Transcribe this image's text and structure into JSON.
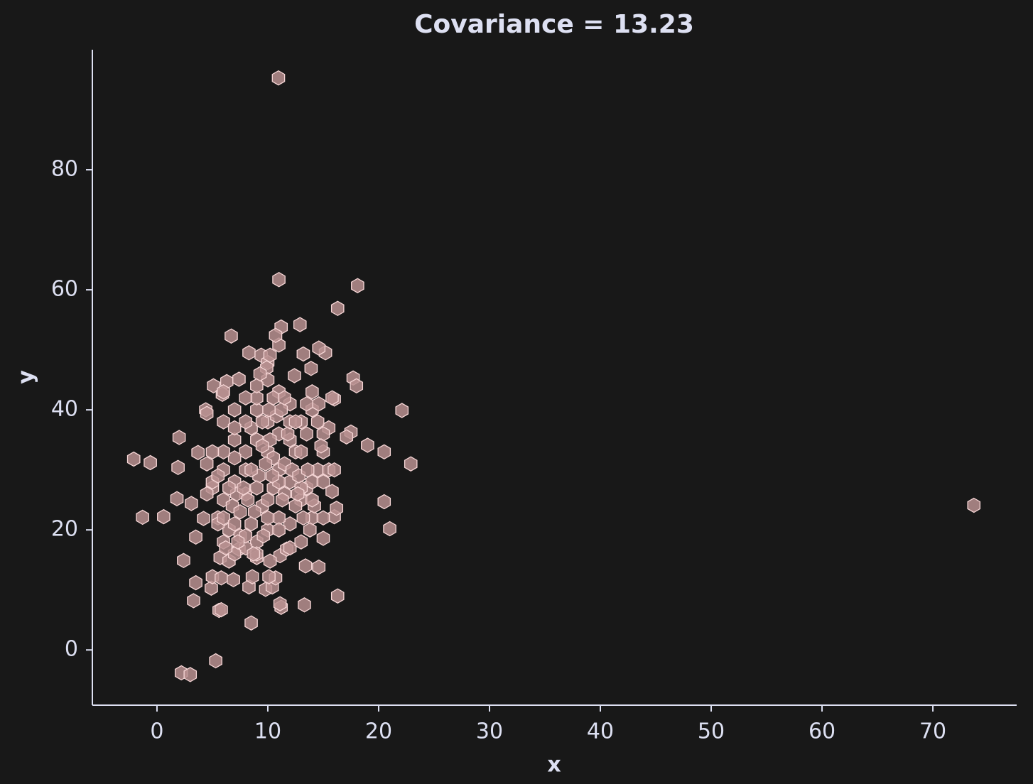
{
  "chart_data": {
    "type": "scatter",
    "title": "Covariance = 13.23",
    "x_label": "x",
    "y_label": "y",
    "x": [
      10.96,
      73.7,
      11.0,
      18.1,
      16.3,
      6.7,
      12.9,
      11.2,
      22.1,
      22.9,
      20.5,
      20.5,
      21.0,
      19.0,
      17.7,
      18.0,
      -2.1,
      -0.6,
      -1.3,
      0.6,
      2.0,
      1.9,
      1.8,
      2.4,
      3.3,
      3.5,
      2.2,
      3.0,
      5.3,
      8.5,
      5.6,
      11.2,
      13.3,
      16.3,
      14.6,
      13.4,
      15.0,
      16.0,
      16.2,
      15.8,
      17.5,
      17.1,
      16.0,
      15.2,
      14.6,
      13.2,
      13.9,
      12.4,
      11.0,
      10.7,
      8.3,
      9.4,
      10.0,
      9.9,
      10.2,
      5.1,
      6.3,
      7.4,
      5.9,
      4.4,
      4.5,
      3.7,
      3.1,
      3.5,
      4.2,
      4.9,
      5.0,
      5.8,
      6.9,
      5.8,
      8.3,
      8.6,
      9.8,
      10.4,
      10.7,
      10.1,
      11.1,
      11.1,
      11.7,
      10.2,
      9.0,
      5.7,
      6.5,
      7.4,
      6,
      7,
      8,
      9,
      10,
      11,
      12,
      13,
      14,
      9,
      10,
      11,
      12,
      8,
      7,
      6,
      5,
      4.5,
      5.5,
      6.5,
      7.5,
      8.5,
      9.5,
      10.5,
      11.5,
      12.5,
      13.5,
      14.5,
      15,
      15.5,
      14,
      13,
      12,
      11,
      10,
      9,
      8,
      7,
      6,
      8.5,
      9.5,
      10.5,
      11.5,
      12.5,
      13.5,
      14.5,
      15.5,
      14,
      13,
      12,
      11,
      10,
      9,
      8,
      7,
      6,
      5.5,
      6.8,
      7.2,
      7.8,
      8.2,
      8.8,
      9.2,
      9.8,
      10.2,
      10.8,
      11.2,
      11.8,
      12.2,
      12.8,
      13.2,
      13.8,
      14.2,
      15,
      16,
      15,
      13,
      12,
      11,
      10,
      9,
      8,
      7,
      6,
      5,
      4.5,
      5,
      6,
      7,
      8,
      9,
      10,
      11,
      12,
      13,
      14,
      15,
      6.5,
      7.5,
      8.5,
      9.5,
      10.5,
      11.5,
      12.5,
      13.5,
      14,
      9,
      8,
      7,
      6,
      5.5,
      6.2,
      7.3,
      8.7,
      9.6,
      10.4,
      11.3,
      12.7,
      13.6,
      14.8,
      15.8,
      14.6,
      9.3,
      10.1
    ],
    "y": [
      95.3,
      24.1,
      61.7,
      60.7,
      56.9,
      52.3,
      54.2,
      53.8,
      39.9,
      31.0,
      33.0,
      24.7,
      20.2,
      34.1,
      45.3,
      44.0,
      31.8,
      31.2,
      22.1,
      22.2,
      35.4,
      30.4,
      25.2,
      14.9,
      8.2,
      11.2,
      -3.8,
      -4.1,
      -1.8,
      4.5,
      6.6,
      7.1,
      7.5,
      9.0,
      13.8,
      14.0,
      18.6,
      22.2,
      23.6,
      26.4,
      36.3,
      35.5,
      41.8,
      49.5,
      50.3,
      49.3,
      46.9,
      45.7,
      50.8,
      52.4,
      49.5,
      49.1,
      47.9,
      47.0,
      49.1,
      44.0,
      44.7,
      45.1,
      42.6,
      40.0,
      39.4,
      32.9,
      24.4,
      18.8,
      21.9,
      10.3,
      12.2,
      12.0,
      11.7,
      6.7,
      10.5,
      12.2,
      10.1,
      10.5,
      12.0,
      12.2,
      7.7,
      15.7,
      16.8,
      14.8,
      15.4,
      15.4,
      14.8,
      16.8,
      30,
      28,
      26,
      35,
      33,
      30,
      28,
      25,
      22,
      40,
      38,
      36,
      35,
      33,
      35,
      25,
      27,
      26,
      22,
      20,
      19,
      21,
      24,
      27,
      26,
      24,
      27,
      30,
      33,
      37,
      40,
      38,
      41,
      43,
      45,
      42,
      42,
      40,
      38,
      37,
      38,
      32,
      31,
      33,
      36,
      38,
      30,
      28,
      27,
      21,
      22,
      20,
      18,
      17,
      16,
      18,
      21,
      24,
      26,
      27,
      25,
      23,
      29,
      31,
      35,
      39,
      40,
      36,
      30,
      29,
      22,
      20,
      24,
      28,
      30,
      36,
      33,
      38,
      28,
      25,
      27,
      30,
      32,
      33,
      33,
      31,
      28,
      22,
      21,
      19,
      16,
      22,
      20,
      17,
      18,
      25,
      22,
      27,
      23,
      30,
      34,
      42,
      42,
      38,
      41,
      43,
      44,
      38,
      37,
      43,
      29,
      17,
      18,
      16,
      19,
      29,
      25,
      26,
      30,
      34,
      42,
      41,
      46,
      40
    ],
    "color": "#b89090",
    "edgecolor": "#f6d6d6",
    "xlim": [
      -5.83,
      77.56
    ],
    "ylim": [
      -9.2,
      100
    ],
    "xticks": [
      0,
      10,
      20,
      30,
      40,
      50,
      60,
      70
    ],
    "yticks": [
      0,
      20,
      40,
      60,
      80
    ],
    "grid": false
  }
}
